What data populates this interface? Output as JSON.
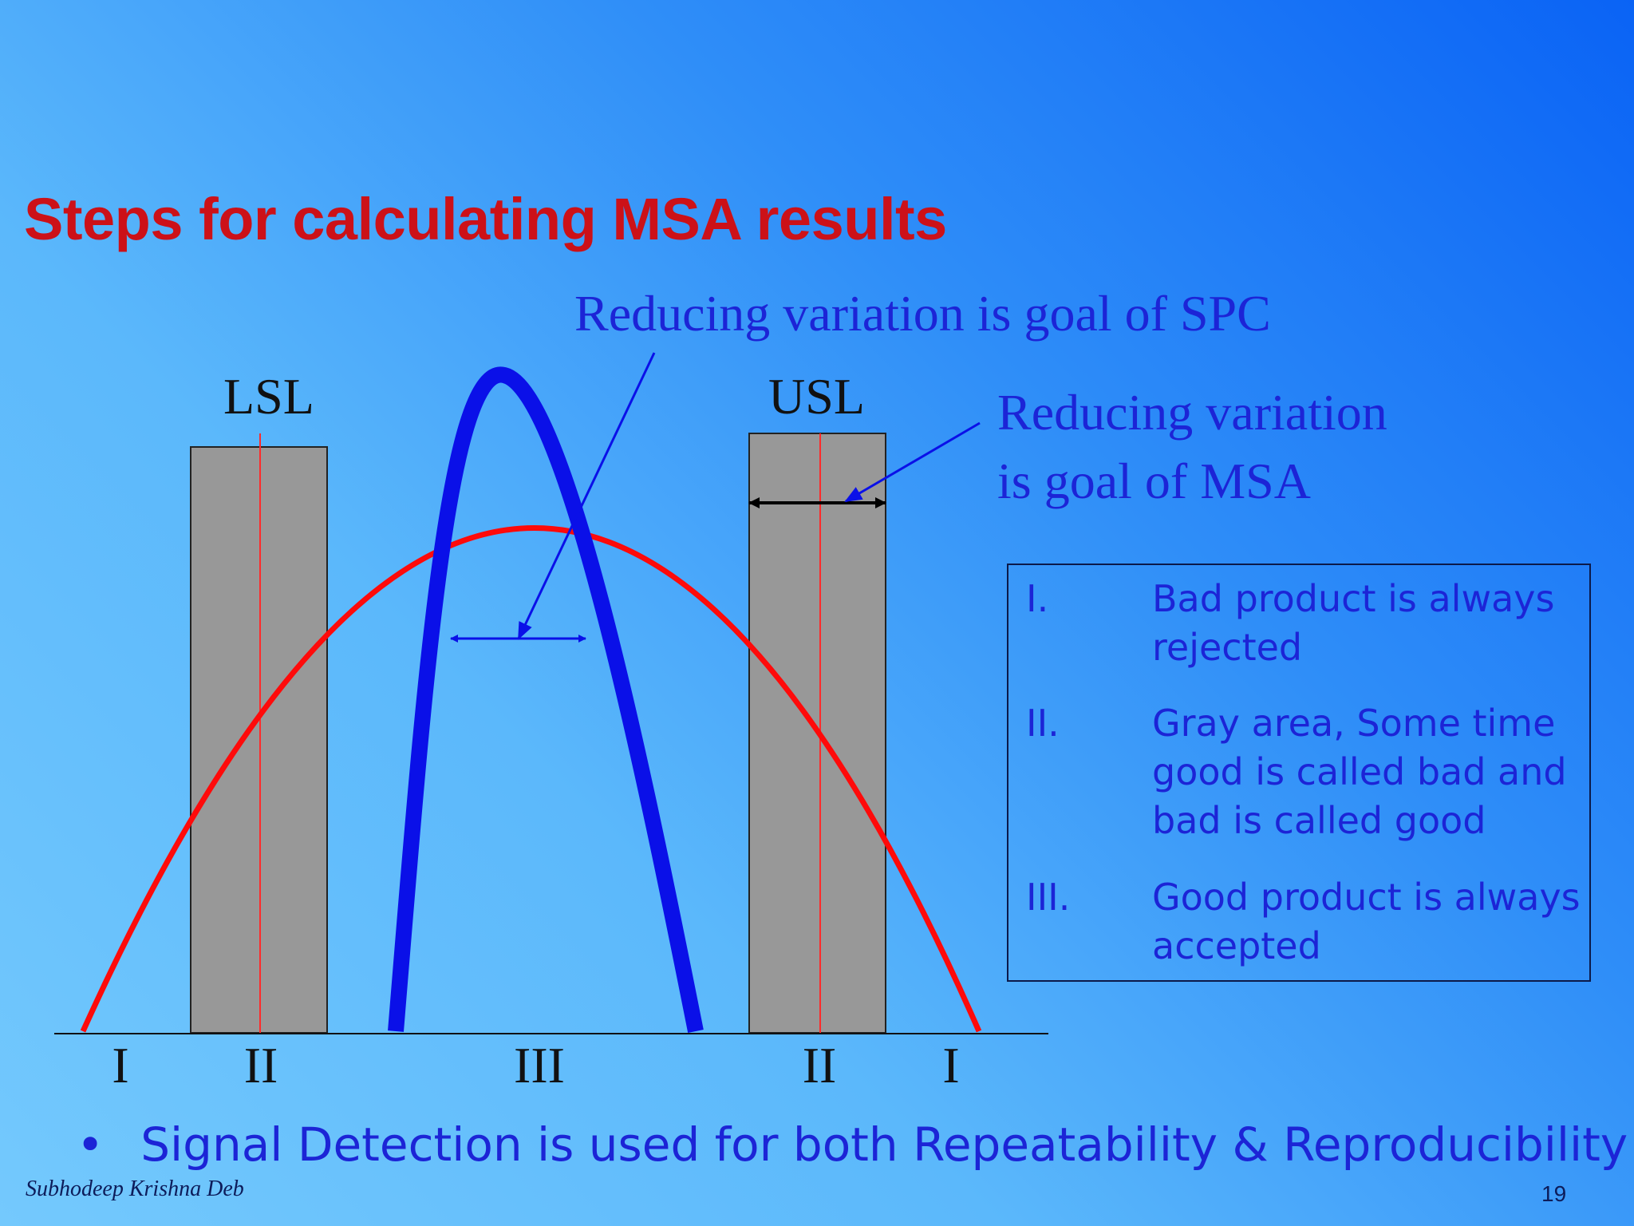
{
  "slide": {
    "title": "Steps for calculating MSA results",
    "page_number": "19",
    "author": "Subhodeep Krishna Deb"
  },
  "diagram": {
    "spc_note": "Reducing variation is goal of SPC",
    "msa_note_line1": "Reducing variation",
    "msa_note_line2": "is goal of MSA",
    "lsl_label": "LSL",
    "usl_label": "USL",
    "zone_labels": [
      "I",
      "II",
      "III",
      "II",
      "I"
    ],
    "colors": {
      "gray_band": "#989898",
      "red_curve": "#ff0a0a",
      "blue_curve": "#0a10e8",
      "title": "#cc1118",
      "text_blue": "#1c24d6"
    }
  },
  "legend": {
    "items": [
      {
        "num": "I.",
        "lines": [
          "Bad product is always",
          "rejected"
        ]
      },
      {
        "num": "II.",
        "lines": [
          "Gray area, Some time",
          "good is called bad and",
          "bad is called good"
        ]
      },
      {
        "num": "III.",
        "lines": [
          "Good product is always",
          "accepted"
        ]
      }
    ]
  },
  "bullet": {
    "symbol": "•",
    "text": "Signal Detection is used for both Repeatability & Reproducibility"
  }
}
